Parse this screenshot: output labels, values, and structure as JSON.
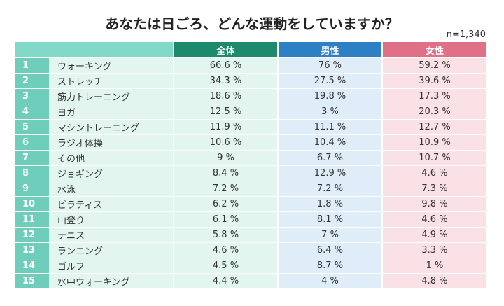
{
  "title": "あなたは日ごろ、どんな運動をしていますか？",
  "note": "n=1,340",
  "table": {
    "header": [
      "全体",
      "男性",
      "女性"
    ],
    "rows": [
      [
        1,
        "ウォーキング",
        "66.6 %",
        "76 %",
        "59.2 %"
      ],
      [
        2,
        "ストレッチ",
        "34.3 %",
        "27.5 %",
        "39.6 %"
      ],
      [
        3,
        "筋力トレーニング",
        "18.6 %",
        "19.8 %",
        "17.3 %"
      ],
      [
        4,
        "ヨガ",
        "12.5 %",
        "3 %",
        "20.3 %"
      ],
      [
        5,
        "マシントレーニング",
        "11.9 %",
        "11.1 %",
        "12.7 %"
      ],
      [
        6,
        "ラジオ体操",
        "10.6 %",
        "10.4 %",
        "10.9 %"
      ],
      [
        7,
        "その他",
        "9 %",
        "6.7 %",
        "10.7 %"
      ],
      [
        8,
        "ジョギング",
        "8.4 %",
        "12.9 %",
        "4.6 %"
      ],
      [
        9,
        "水泳",
        "7.2 %",
        "7.2 %",
        "7.3 %"
      ],
      [
        10,
        "ピラティス",
        "6.2 %",
        "1.8 %",
        "9.8 %"
      ],
      [
        11,
        "山登り",
        "6.1 %",
        "8.1 %",
        "4.6 %"
      ],
      [
        12,
        "テニス",
        "5.8 %",
        "7 %",
        "4.9 %"
      ],
      [
        13,
        "ランニング",
        "4.6 %",
        "6.4 %",
        "3.3 %"
      ],
      [
        14,
        "ゴルフ",
        "4.5 %",
        "8.7 %",
        "1 %"
      ],
      [
        15,
        "水中ウォーキング",
        "4.4 %",
        "4 %",
        "4.8 %"
      ]
    ]
  }
}
